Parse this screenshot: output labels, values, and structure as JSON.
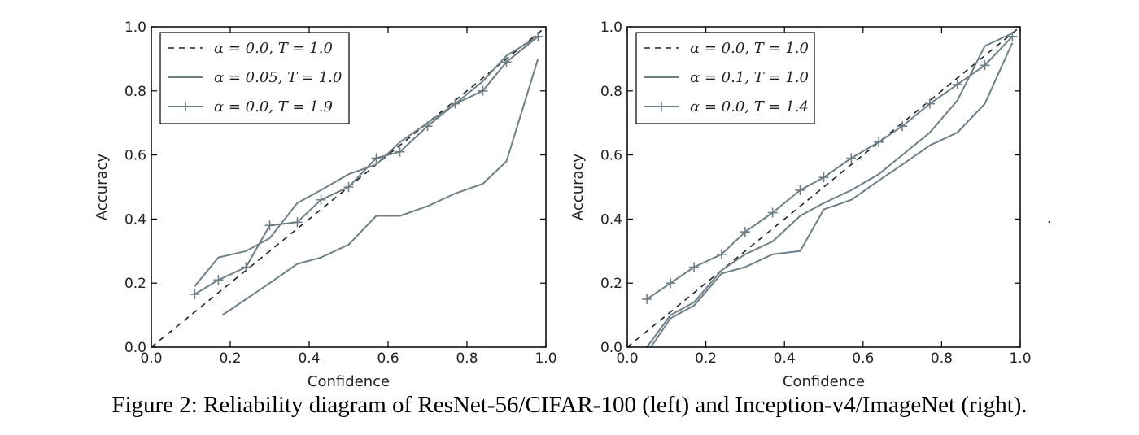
{
  "caption": "Figure 2: Reliability diagram of ResNet-56/CIFAR-100 (left) and Inception-v4/ImageNet (right).",
  "stray_mark": ".",
  "colors": {
    "line": "#6f7f86",
    "diagonal": "#222222",
    "axes": "#000000"
  },
  "chart_data": [
    {
      "type": "line",
      "xlabel": "Confidence",
      "ylabel": "Accuracy",
      "xlim": [
        0.0,
        1.0
      ],
      "ylim": [
        0.0,
        1.0
      ],
      "xticks": [
        "0.0",
        "0.2",
        "0.4",
        "0.6",
        "0.8",
        "1.0"
      ],
      "yticks": [
        "0.0",
        "0.2",
        "0.4",
        "0.6",
        "0.8",
        "1.0"
      ],
      "grid": false,
      "legend_position": "top-left",
      "series": [
        {
          "name": "α = 0.0, T = 1.0",
          "style": "dashed",
          "x": [
            0.0,
            1.0
          ],
          "y": [
            0.0,
            1.0
          ]
        },
        {
          "name": "α = 0.05, T = 1.0",
          "style": "solid",
          "x": [
            0.11,
            0.17,
            0.24,
            0.3,
            0.37,
            0.43,
            0.5,
            0.57,
            0.63,
            0.7,
            0.77,
            0.84,
            0.9,
            0.98
          ],
          "y": [
            0.19,
            0.28,
            0.3,
            0.34,
            0.45,
            0.49,
            0.54,
            0.57,
            0.64,
            0.7,
            0.76,
            0.83,
            0.91,
            0.97
          ]
        },
        {
          "name": "",
          "style": "solid",
          "x": [
            0.18,
            0.24,
            0.3,
            0.37,
            0.43,
            0.5,
            0.57,
            0.63,
            0.7,
            0.77,
            0.84,
            0.9,
            0.98
          ],
          "y": [
            0.1,
            0.15,
            0.2,
            0.26,
            0.28,
            0.32,
            0.41,
            0.41,
            0.44,
            0.48,
            0.51,
            0.58,
            0.9
          ]
        },
        {
          "name": "α = 0.0, T = 1.9",
          "style": "solid-plus",
          "x": [
            0.11,
            0.17,
            0.24,
            0.3,
            0.37,
            0.43,
            0.5,
            0.57,
            0.63,
            0.7,
            0.77,
            0.84,
            0.9,
            0.98
          ],
          "y": [
            0.165,
            0.21,
            0.25,
            0.38,
            0.39,
            0.46,
            0.5,
            0.59,
            0.61,
            0.69,
            0.76,
            0.8,
            0.89,
            0.97
          ]
        }
      ]
    },
    {
      "type": "line",
      "xlabel": "Confidence",
      "ylabel": "Accuracy",
      "xlim": [
        0.0,
        1.0
      ],
      "ylim": [
        0.0,
        1.0
      ],
      "xticks": [
        "0.0",
        "0.2",
        "0.4",
        "0.6",
        "0.8",
        "1.0"
      ],
      "yticks": [
        "0.0",
        "0.2",
        "0.4",
        "0.6",
        "0.8",
        "1.0"
      ],
      "grid": false,
      "legend_position": "top-left",
      "series": [
        {
          "name": "α = 0.0, T = 1.0",
          "style": "dashed",
          "x": [
            0.0,
            1.0
          ],
          "y": [
            0.0,
            1.0
          ]
        },
        {
          "name": "α = 0.1, T = 1.0",
          "style": "solid",
          "x": [
            0.05,
            0.11,
            0.17,
            0.24,
            0.3,
            0.37,
            0.44,
            0.5,
            0.57,
            0.64,
            0.7,
            0.77,
            0.84,
            0.91,
            0.98
          ],
          "y": [
            0.0,
            0.1,
            0.14,
            0.24,
            0.29,
            0.33,
            0.41,
            0.45,
            0.49,
            0.54,
            0.6,
            0.67,
            0.77,
            0.94,
            0.98
          ]
        },
        {
          "name": "",
          "style": "solid",
          "x": [
            0.06,
            0.11,
            0.17,
            0.24,
            0.3,
            0.37,
            0.44,
            0.5,
            0.57,
            0.64,
            0.7,
            0.77,
            0.84,
            0.91,
            0.98
          ],
          "y": [
            0.0,
            0.09,
            0.13,
            0.23,
            0.25,
            0.29,
            0.3,
            0.43,
            0.46,
            0.52,
            0.57,
            0.63,
            0.67,
            0.76,
            0.95
          ]
        },
        {
          "name": "α = 0.0, T = 1.4",
          "style": "solid-plus",
          "x": [
            0.05,
            0.11,
            0.17,
            0.24,
            0.3,
            0.37,
            0.44,
            0.5,
            0.57,
            0.64,
            0.7,
            0.77,
            0.84,
            0.91,
            0.98
          ],
          "y": [
            0.15,
            0.2,
            0.25,
            0.29,
            0.36,
            0.42,
            0.49,
            0.53,
            0.59,
            0.64,
            0.69,
            0.76,
            0.82,
            0.88,
            0.97
          ]
        }
      ]
    }
  ]
}
